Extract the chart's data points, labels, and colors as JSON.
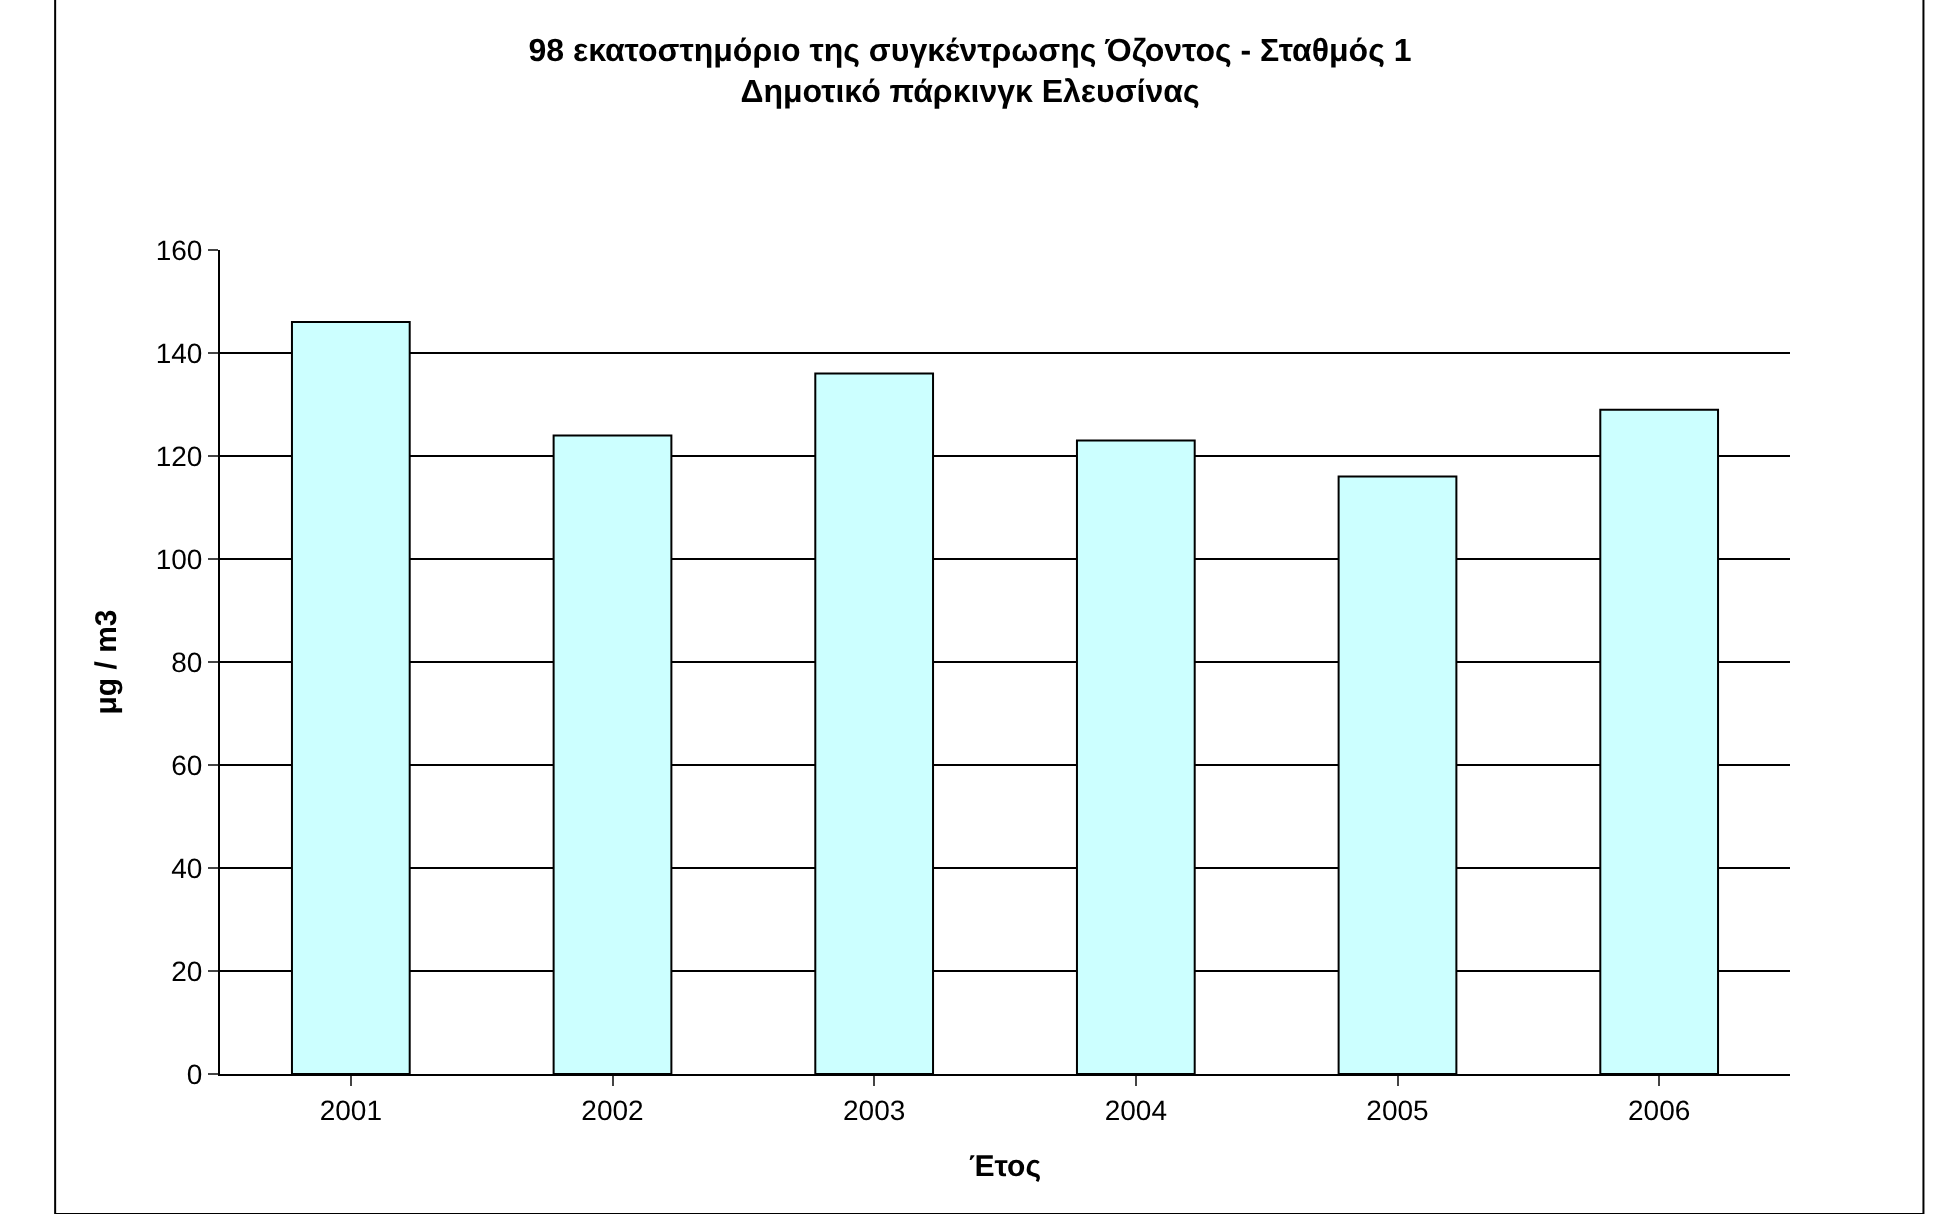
{
  "chart_data": {
    "type": "bar",
    "title": "98 εκατοστημόριο της συγκέντρωσης Όζοντος - Σταθμός 1",
    "subtitle": "Δημοτικό πάρκινγκ Ελευσίνας",
    "xlabel": "Έτος",
    "ylabel": "μg / m3",
    "categories": [
      "2001",
      "2002",
      "2003",
      "2004",
      "2005",
      "2006"
    ],
    "values": [
      146,
      124,
      136,
      123,
      116,
      129
    ],
    "color": "#ccffff",
    "ylim": [
      0,
      160
    ],
    "yticks": [
      0,
      20,
      40,
      60,
      80,
      100,
      120,
      140,
      160
    ],
    "grid": "y",
    "legend": false
  }
}
